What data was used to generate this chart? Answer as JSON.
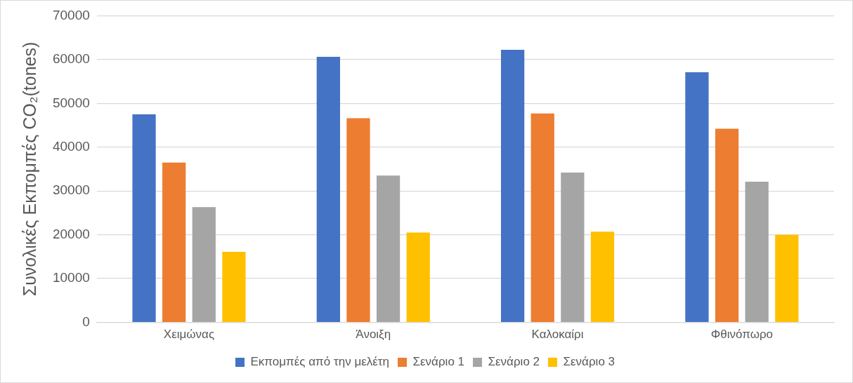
{
  "chart_data": {
    "type": "bar",
    "ylabel": "Συνολικές Εκπομπές CO₂(tones)",
    "categories": [
      "Χειμώνας",
      "Άνοιξη",
      "Καλοκαίρι",
      "Φθινόπωρο"
    ],
    "series": [
      {
        "name": "Εκπομπές από την μελέτη",
        "color": "#4472c4",
        "values": [
          47500,
          60600,
          62200,
          57100
        ]
      },
      {
        "name": "Σενάριο 1",
        "color": "#ed7d31",
        "values": [
          36500,
          46600,
          47700,
          44200
        ]
      },
      {
        "name": "Σενάριο 2",
        "color": "#a5a5a5",
        "values": [
          26300,
          33500,
          34200,
          32100
        ]
      },
      {
        "name": "Σενάριο 3",
        "color": "#ffc000",
        "values": [
          16100,
          20500,
          20700,
          20000
        ]
      }
    ],
    "ylim": [
      0,
      70000
    ],
    "yticks": [
      0,
      10000,
      20000,
      30000,
      40000,
      50000,
      60000,
      70000
    ],
    "grid": "y",
    "legend": "bottom"
  }
}
